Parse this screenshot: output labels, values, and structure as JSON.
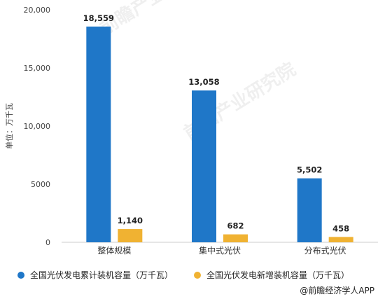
{
  "chart_data": {
    "type": "bar",
    "categories": [
      "整体规模",
      "集中式光伏",
      "分布式光伏"
    ],
    "series": [
      {
        "name": "全国光伏发电累计装机容量（万千瓦）",
        "values": [
          18559,
          13058,
          5502
        ],
        "labels": [
          "18,559",
          "13,058",
          "5,502"
        ],
        "color": "#1f77c8"
      },
      {
        "name": "全国光伏发电新增装机容量（万千瓦）",
        "values": [
          1140,
          682,
          458
        ],
        "labels": [
          "1,140",
          "682",
          "458"
        ],
        "color": "#f0b232"
      }
    ],
    "ylabel": "单位：万千瓦",
    "ylim": [
      0,
      20000
    ],
    "yticks": [
      0,
      5000,
      10000,
      15000,
      20000
    ],
    "ytick_labels": [
      "0",
      "5000",
      "10,000",
      "15,000",
      "20,000"
    ],
    "legend_position": "bottom",
    "gridlines": false
  },
  "watermark": "前瞻产业研究院",
  "credit": "@前瞻经济学人APP"
}
